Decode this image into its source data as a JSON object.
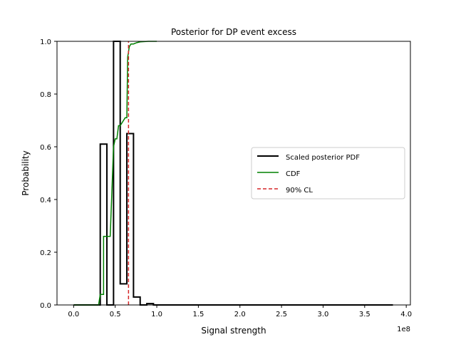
{
  "chart_data": {
    "type": "line",
    "title": "Posterior for DP event excess",
    "xlabel": "Signal strength",
    "ylabel": "Probability",
    "x_scale_label": "1e8",
    "xlim": [
      -20000000.0,
      405000000.0
    ],
    "ylim": [
      0,
      1.0
    ],
    "x_ticks": [
      0.0,
      0.5,
      1.0,
      1.5,
      2.0,
      2.5,
      3.0,
      3.5,
      4.0
    ],
    "x_tick_labels": [
      "0.0",
      "0.5",
      "1.0",
      "1.5",
      "2.0",
      "2.5",
      "3.0",
      "3.5",
      "4.0"
    ],
    "y_ticks": [
      0.0,
      0.2,
      0.4,
      0.6,
      0.8,
      1.0
    ],
    "y_tick_labels": [
      "0.0",
      "0.2",
      "0.4",
      "0.6",
      "0.8",
      "1.0"
    ],
    "grid": false,
    "legend_position": "center-right",
    "series": [
      {
        "name": "Scaled posterior PDF",
        "color": "#000000",
        "style": "step",
        "x": [
          0,
          32000000.0,
          32000000.0,
          40000000.0,
          40000000.0,
          48000000.0,
          48000000.0,
          56000000.0,
          56000000.0,
          64000000.0,
          64000000.0,
          72000000.0,
          72000000.0,
          80000000.0,
          80000000.0,
          88000000.0,
          88000000.0,
          96000000.0,
          96000000.0,
          384000000.0
        ],
        "y": [
          0,
          0,
          0.61,
          0.61,
          0,
          0,
          1.0,
          1.0,
          0.08,
          0.08,
          0.65,
          0.65,
          0.03,
          0.03,
          0,
          0,
          0.005,
          0.005,
          0,
          0
        ]
      },
      {
        "name": "CDF",
        "color": "#008000",
        "style": "line",
        "x": [
          0,
          30000000.0,
          32000000.0,
          36000000.0,
          36000000.0,
          40000000.0,
          44000000.0,
          48000000.0,
          50000000.0,
          52000000.0,
          54000000.0,
          56000000.0,
          60000000.0,
          62000000.0,
          64000000.0,
          65000000.0,
          67000000.0,
          69000000.0,
          72000000.0,
          76000000.0,
          80000000.0,
          90000000.0,
          100000000.0
        ],
        "y": [
          0,
          0,
          0.04,
          0.04,
          0.26,
          0.26,
          0.26,
          0.6,
          0.63,
          0.63,
          0.68,
          0.68,
          0.7,
          0.71,
          0.71,
          0.94,
          0.98,
          0.99,
          0.99,
          0.995,
          0.998,
          1.0,
          1.0
        ]
      },
      {
        "name": "90% CL",
        "color": "#d62728",
        "style": "dashed-vertical",
        "x_value": 66000000.0
      }
    ]
  }
}
